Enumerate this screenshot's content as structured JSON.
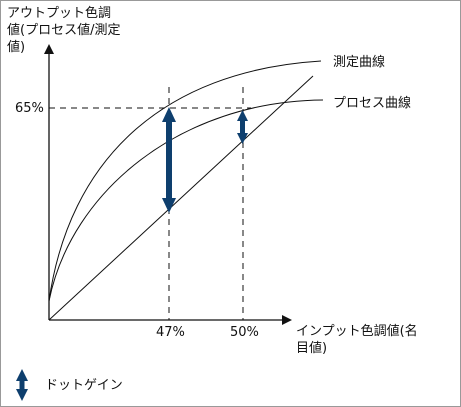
{
  "y_axis": {
    "label_line1": "アウトプット色調",
    "label_line2": "値(プロセス値/測定",
    "label_line3": "値)"
  },
  "x_axis": {
    "label_line1": "インプット色調値(名",
    "label_line2": "目値)"
  },
  "reference": {
    "y_tick": "65%",
    "x_ticks": [
      "47%",
      "50%"
    ]
  },
  "curves": {
    "measured": "測定曲線",
    "process": "プロセス曲線"
  },
  "legend": {
    "label": "ドットゲイン"
  },
  "colors": {
    "arrow": "#0e3f6e",
    "line": "#111111"
  }
}
